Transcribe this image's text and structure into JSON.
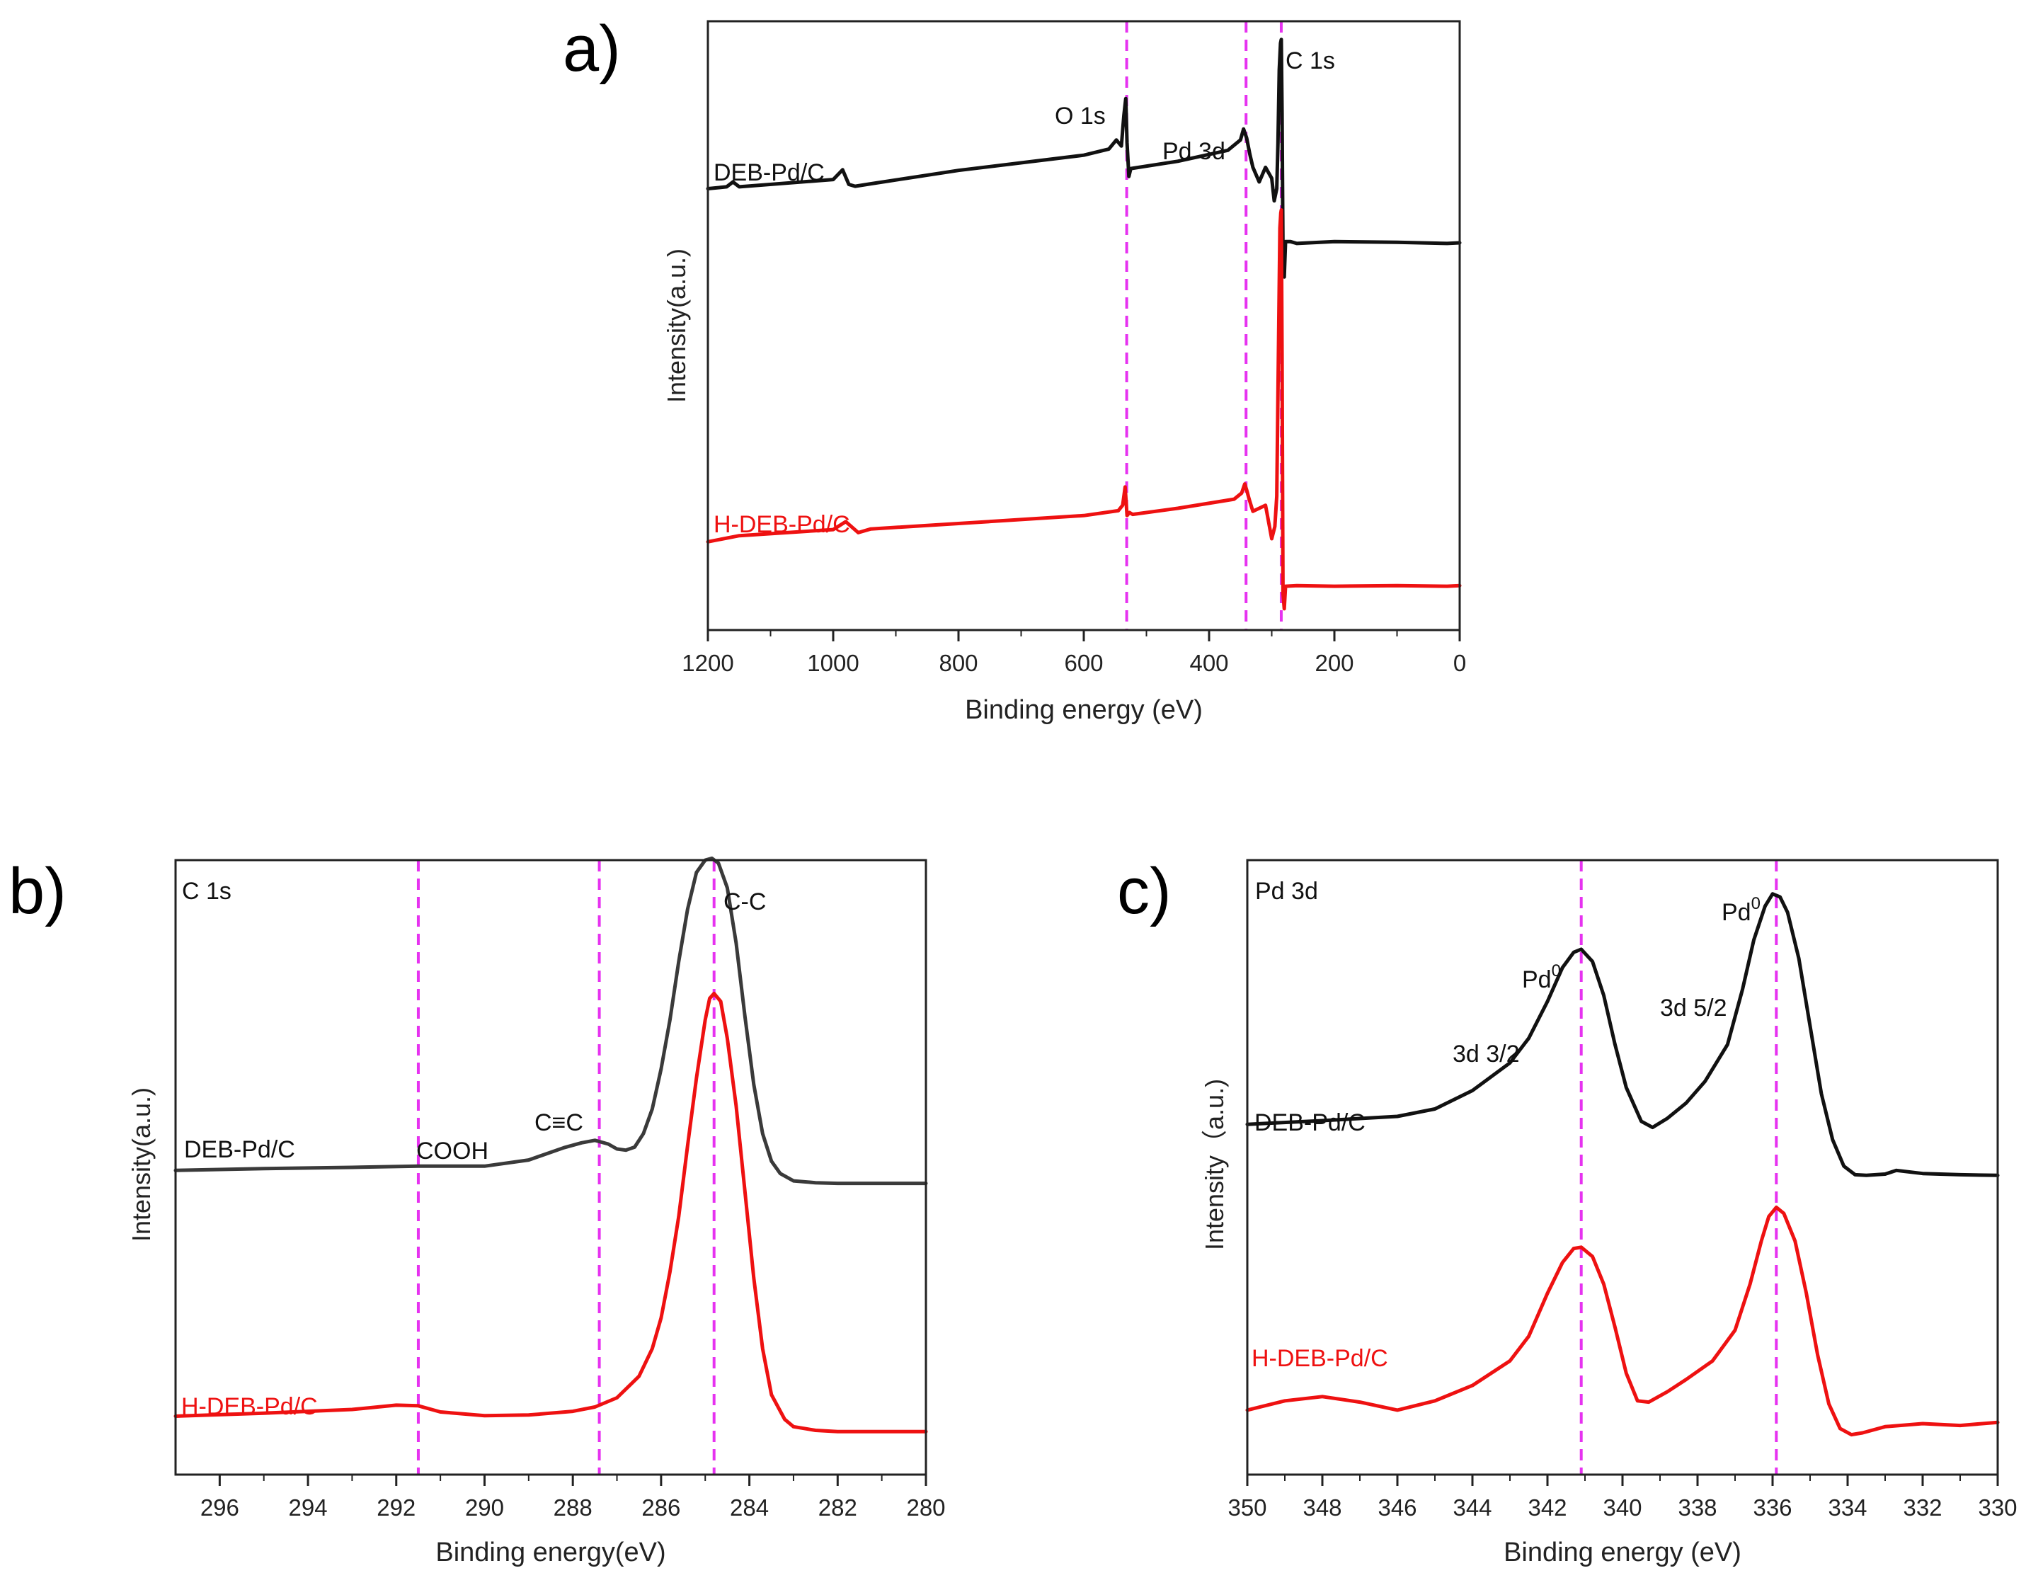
{
  "chart_data": [
    {
      "panel": "a)",
      "type": "line",
      "title": "",
      "xlabel": "Binding energy (eV)",
      "ylabel": "Intensity(a.u.)",
      "xlim": [
        1200,
        0
      ],
      "xticks": [
        1200,
        1000,
        800,
        600,
        400,
        200,
        0
      ],
      "ylim": [
        0,
        100
      ],
      "series": [
        {
          "name": "DEB-Pd/C",
          "color": "#111111",
          "x": [
            1200,
            1170,
            1160,
            1150,
            1000,
            985,
            975,
            965,
            940,
            800,
            600,
            560,
            548,
            540,
            536,
            533,
            531,
            528,
            525,
            450,
            370,
            350,
            345,
            340,
            335,
            330,
            320,
            310,
            300,
            296,
            292,
            290,
            288,
            286,
            284.8,
            283.5,
            282,
            280,
            278,
            270,
            260,
            240,
            200,
            100,
            20,
            0
          ],
          "y": [
            72.5,
            72.8,
            73.6,
            72.8,
            74.0,
            75.6,
            73.2,
            72.9,
            73.3,
            75.5,
            78.0,
            79.0,
            80.5,
            79.5,
            84.5,
            87.3,
            80.0,
            74.5,
            75.8,
            77.0,
            78.8,
            80.5,
            82.3,
            80.8,
            78.2,
            76.0,
            73.6,
            76.0,
            74.2,
            70.5,
            72.5,
            80.0,
            92.0,
            96.4,
            97.0,
            85.0,
            62.0,
            58.0,
            63.8,
            63.8,
            63.5,
            63.6,
            63.8,
            63.7,
            63.5,
            63.6
          ]
        },
        {
          "name": "H-DEB-Pd/C",
          "color": "#ee1111",
          "x": [
            1200,
            1150,
            1000,
            980,
            960,
            940,
            800,
            600,
            545,
            538,
            534,
            531,
            527,
            522,
            450,
            360,
            348,
            343,
            340,
            336,
            330,
            310,
            300,
            295,
            292,
            289,
            287,
            285.5,
            284.8,
            283.5,
            282,
            280,
            278,
            260,
            200,
            100,
            20,
            0
          ],
          "y": [
            14.5,
            15.5,
            16.5,
            17.8,
            16.0,
            16.6,
            17.5,
            18.8,
            19.6,
            20.5,
            23.5,
            18.8,
            19.3,
            19.0,
            20.0,
            21.5,
            22.5,
            24.0,
            23.0,
            21.5,
            19.5,
            20.5,
            15.0,
            17.0,
            22.0,
            48.0,
            66.0,
            68.5,
            69.0,
            45.0,
            6.0,
            3.5,
            7.2,
            7.3,
            7.2,
            7.3,
            7.2,
            7.3
          ]
        }
      ],
      "reference_lines": [
        531.5,
        341.0,
        284.8
      ],
      "annotations": [
        "O 1s",
        "Pd 3d",
        "C 1s"
      ]
    },
    {
      "panel": "b)",
      "type": "line",
      "title": "C 1s",
      "xlabel": "Binding energy(eV)",
      "ylabel": "Intensity(a.u.)",
      "xlim": [
        297,
        280
      ],
      "xticks": [
        296,
        294,
        292,
        290,
        288,
        286,
        284,
        282,
        280
      ],
      "ylim": [
        0,
        100
      ],
      "series": [
        {
          "name": "DEB-Pd/C",
          "color": "#3a3a3a",
          "x": [
            297,
            295,
            293,
            291.5,
            290,
            289,
            288.2,
            287.8,
            287.5,
            287.2,
            287.0,
            286.8,
            286.6,
            286.4,
            286.2,
            286.0,
            285.8,
            285.6,
            285.4,
            285.2,
            285.0,
            284.85,
            284.7,
            284.5,
            284.3,
            284.1,
            283.9,
            283.7,
            283.5,
            283.3,
            283.0,
            282.5,
            282.0,
            281.0,
            280
          ],
          "y": [
            49.5,
            49.8,
            50.0,
            50.2,
            50.2,
            51.2,
            53.2,
            54.0,
            54.4,
            53.8,
            53.0,
            52.8,
            53.3,
            55.5,
            59.5,
            66.0,
            74.0,
            83.5,
            92.0,
            98.0,
            100.0,
            100.3,
            99.5,
            95.5,
            86.5,
            74.5,
            63.5,
            55.5,
            51.0,
            49.0,
            47.8,
            47.5,
            47.4,
            47.4,
            47.4
          ]
        },
        {
          "name": "H-DEB-Pd/C",
          "color": "#ee1111",
          "x": [
            297,
            295,
            293,
            292,
            291.5,
            291,
            290,
            289,
            288,
            287.5,
            287,
            286.5,
            286.2,
            286.0,
            285.8,
            285.6,
            285.4,
            285.2,
            285.0,
            284.9,
            284.8,
            284.65,
            284.5,
            284.3,
            284.1,
            283.9,
            283.7,
            283.5,
            283.2,
            283.0,
            282.5,
            282,
            281,
            280
          ],
          "y": [
            9.5,
            10.0,
            10.6,
            11.3,
            11.2,
            10.2,
            9.6,
            9.7,
            10.3,
            11.0,
            12.5,
            16.0,
            20.5,
            25.5,
            33.0,
            42.0,
            53.5,
            64.5,
            74.0,
            77.5,
            78.3,
            77.0,
            71.0,
            60.0,
            46.0,
            32.0,
            20.5,
            13.0,
            9.0,
            7.8,
            7.2,
            7.0,
            7.0,
            7.0
          ]
        }
      ],
      "reference_lines": [
        291.5,
        287.4,
        284.8
      ],
      "annotations": [
        "COOH",
        "C≡C",
        "C-C"
      ]
    },
    {
      "panel": "c)",
      "type": "line",
      "title": "Pd 3d",
      "xlabel": "Binding energy (eV)",
      "ylabel": "Intensity（a.u.)",
      "xlim": [
        350,
        330
      ],
      "xticks": [
        350,
        348,
        346,
        344,
        342,
        340,
        338,
        336,
        334,
        332,
        330
      ],
      "ylim": [
        0,
        100
      ],
      "series": [
        {
          "name": "DEB-Pd/C",
          "color": "#111111",
          "x": [
            350,
            348,
            346,
            345,
            344,
            343,
            342.5,
            342,
            341.6,
            341.3,
            341.1,
            340.8,
            340.5,
            340.2,
            339.9,
            339.5,
            339.2,
            338.8,
            338.3,
            337.8,
            337.2,
            336.8,
            336.5,
            336.2,
            336.0,
            335.8,
            335.6,
            335.3,
            335.0,
            334.7,
            334.4,
            334.1,
            333.8,
            333.5,
            333,
            332.7,
            332,
            331,
            330
          ],
          "y": [
            57.0,
            57.6,
            58.3,
            59.5,
            62.5,
            67.0,
            71.0,
            77.0,
            82.5,
            85.0,
            85.5,
            83.5,
            78.0,
            70.0,
            63.0,
            57.5,
            56.5,
            58.0,
            60.5,
            64.0,
            70.0,
            79.0,
            87.0,
            92.5,
            94.5,
            94.0,
            91.5,
            84.0,
            73.0,
            62.0,
            54.5,
            50.2,
            48.8,
            48.7,
            48.9,
            49.5,
            49.0,
            48.8,
            48.7
          ]
        },
        {
          "name": "H-DEB-Pd/C",
          "color": "#ee1111",
          "x": [
            350,
            349,
            348,
            347,
            346,
            345,
            344,
            343,
            342.5,
            342,
            341.6,
            341.3,
            341.1,
            340.8,
            340.5,
            340.2,
            339.9,
            339.6,
            339.3,
            338.8,
            338.3,
            337.6,
            337,
            336.6,
            336.3,
            336.1,
            335.9,
            335.7,
            335.4,
            335.1,
            334.8,
            334.5,
            334.2,
            333.9,
            333.6,
            333,
            332,
            331,
            330
          ],
          "y": [
            10.5,
            12.0,
            12.7,
            11.8,
            10.5,
            12.0,
            14.5,
            18.5,
            22.5,
            29.5,
            34.5,
            36.8,
            37.0,
            35.5,
            31.0,
            24.0,
            16.5,
            12.0,
            11.8,
            13.5,
            15.5,
            18.5,
            23.5,
            31.0,
            38.0,
            42.0,
            43.5,
            42.5,
            38.0,
            29.5,
            19.5,
            11.5,
            7.5,
            6.5,
            6.8,
            7.8,
            8.3,
            8.0,
            8.5
          ]
        }
      ],
      "reference_lines": [
        341.1,
        335.9
      ],
      "annotations": [
        "Pd",
        "3d 3/2",
        "Pd",
        "3d 5/2"
      ],
      "superscript": "0"
    }
  ]
}
